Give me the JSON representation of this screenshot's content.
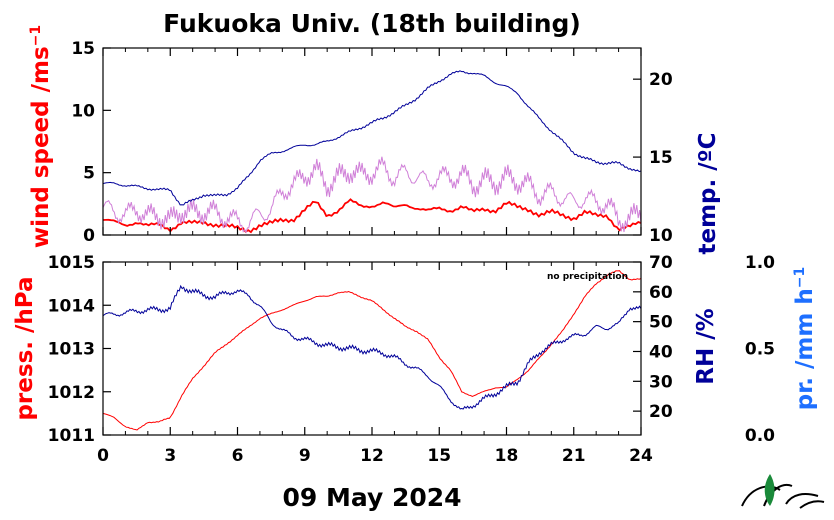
{
  "title": "Fukuoka Univ. (18th building)",
  "date_label": "09 May 2024",
  "note": "no precipitation",
  "colors": {
    "wind": "#ff0000",
    "wind_gust": "#d080d8",
    "temp": "#000099",
    "pressure": "#ff0000",
    "rh": "#000099",
    "precip": "#1e6fff",
    "axis": "#000000"
  },
  "icons": [
    "institution-logo-icon"
  ],
  "chart_data": [
    {
      "type": "line",
      "panel": "top",
      "x_ticks": [
        "0",
        "3",
        "6",
        "9",
        "12",
        "15",
        "18",
        "21",
        "24"
      ],
      "xlim": [
        0,
        24
      ],
      "y_left": {
        "label": "wind speed /ms",
        "exp": "−1",
        "lim": [
          0,
          15
        ],
        "ticks": [
          "0",
          "5",
          "10",
          "15"
        ]
      },
      "y_right": {
        "label": "temp. /ºC",
        "lim": [
          10,
          22
        ],
        "ticks": [
          "10",
          "15",
          "20"
        ]
      },
      "series": [
        {
          "axis": "left",
          "style": "mean",
          "x": [
            0,
            0.5,
            1,
            1.5,
            2,
            2.5,
            3,
            3.5,
            4,
            4.5,
            5,
            5.5,
            6,
            6.5,
            7,
            7.5,
            8,
            8.5,
            9,
            9.5,
            10,
            10.5,
            11,
            11.5,
            12,
            12.5,
            13,
            13.5,
            14,
            14.5,
            15,
            15.5,
            16,
            16.5,
            17,
            17.5,
            18,
            18.5,
            19,
            19.5,
            20,
            20.5,
            21,
            21.5,
            22,
            22.5,
            23,
            23.5,
            24
          ],
          "y": [
            1.2,
            1.0,
            0.8,
            1.1,
            0.7,
            0.8,
            0.5,
            1.0,
            0.9,
            1.0,
            0.9,
            0.7,
            0.5,
            0.4,
            0.8,
            0.9,
            1.2,
            1.3,
            2.0,
            2.6,
            1.6,
            2.0,
            2.7,
            2.3,
            2.4,
            2.6,
            2.1,
            2.5,
            2.2,
            1.9,
            2.1,
            2.0,
            2.3,
            1.8,
            2.1,
            2.0,
            2.5,
            2.2,
            2.1,
            1.6,
            1.8,
            1.6,
            1.4,
            1.8,
            1.5,
            1.6,
            0.5,
            0.6,
            1.0
          ]
        },
        {
          "axis": "left",
          "style": "gust",
          "x": [
            0,
            0.5,
            1,
            1.5,
            2,
            2.5,
            3,
            3.5,
            4,
            4.5,
            5,
            5.5,
            6,
            6.5,
            7,
            7.5,
            8,
            8.5,
            9,
            9.5,
            10,
            10.5,
            11,
            11.5,
            12,
            12.5,
            13,
            13.5,
            14,
            14.5,
            15,
            15.5,
            16,
            16.5,
            17,
            17.5,
            18,
            18.5,
            19,
            19.5,
            20,
            20.5,
            21,
            21.5,
            22,
            22.5,
            23,
            23.5,
            24
          ],
          "y": [
            2.2,
            1.9,
            1.6,
            2.1,
            1.5,
            1.6,
            1.1,
            2.0,
            1.8,
            1.9,
            1.8,
            1.4,
            1.1,
            0.9,
            1.7,
            2.0,
            3.5,
            4.0,
            4.8,
            5.2,
            4.0,
            4.6,
            5.2,
            4.8,
            5.0,
            5.4,
            4.6,
            5.0,
            4.7,
            4.2,
            4.8,
            4.5,
            4.9,
            4.0,
            4.4,
            4.2,
            4.6,
            4.3,
            4.0,
            3.2,
            3.4,
            3.0,
            2.6,
            3.0,
            2.6,
            2.5,
            1.2,
            1.3,
            1.8
          ]
        },
        {
          "axis": "right",
          "style": "temp",
          "x": [
            0,
            0.5,
            1,
            1.5,
            2,
            2.5,
            3,
            3.5,
            4,
            4.5,
            5,
            5.5,
            6,
            6.5,
            7,
            7.5,
            8,
            8.5,
            9,
            9.5,
            10,
            10.5,
            11,
            11.5,
            12,
            12.5,
            13,
            13.5,
            14,
            14.5,
            15,
            15.5,
            16,
            16.5,
            17,
            17.5,
            18,
            18.5,
            19,
            19.5,
            20,
            20.5,
            21,
            21.5,
            22,
            22.5,
            23,
            23.5,
            24
          ],
          "y": [
            13.3,
            13.3,
            13.2,
            13.1,
            13.0,
            12.9,
            12.9,
            11.9,
            12.2,
            12.6,
            12.5,
            12.6,
            13.0,
            13.8,
            14.8,
            15.2,
            15.4,
            15.6,
            15.8,
            15.8,
            16.0,
            16.3,
            16.6,
            16.9,
            17.2,
            17.5,
            17.9,
            18.3,
            18.8,
            19.4,
            19.9,
            20.3,
            20.5,
            20.4,
            20.2,
            19.8,
            19.5,
            19.1,
            18.2,
            17.4,
            16.7,
            16.0,
            15.3,
            14.9,
            14.7,
            14.6,
            14.6,
            14.3,
            14.0
          ]
        }
      ]
    },
    {
      "type": "line",
      "panel": "bottom",
      "x_ticks": [
        "0",
        "3",
        "6",
        "9",
        "12",
        "15",
        "18",
        "21",
        "24"
      ],
      "xlim": [
        0,
        24
      ],
      "y_left": {
        "label": "press. /hPa",
        "lim": [
          1011,
          1015
        ],
        "ticks": [
          "1011",
          "1012",
          "1013",
          "1014",
          "1015"
        ]
      },
      "y_right": {
        "label": "RH /%",
        "lim": [
          12,
          70
        ],
        "ticks": [
          "20",
          "30",
          "40",
          "50",
          "60",
          "70"
        ]
      },
      "y_far_right": {
        "label": "pr. /mm h",
        "exp": "−1",
        "lim": [
          0,
          1
        ],
        "ticks": [
          "0.0",
          "0.5",
          "1.0"
        ]
      },
      "series": [
        {
          "axis": "left",
          "name": "pressure",
          "x": [
            0,
            0.5,
            1,
            1.5,
            2,
            2.5,
            3,
            3.5,
            4,
            4.5,
            5,
            5.5,
            6,
            6.5,
            7,
            7.5,
            8,
            8.5,
            9,
            9.5,
            10,
            10.5,
            11,
            11.5,
            12,
            12.5,
            13,
            13.5,
            14,
            14.5,
            15,
            15.5,
            16,
            16.5,
            17,
            17.5,
            18,
            18.5,
            19,
            19.5,
            20,
            20.5,
            21,
            21.5,
            22,
            22.5,
            23,
            23.5,
            24
          ],
          "y": [
            1011.5,
            1011.4,
            1011.2,
            1011.1,
            1011.3,
            1011.3,
            1011.4,
            1011.9,
            1012.3,
            1012.6,
            1012.9,
            1013.1,
            1013.3,
            1013.5,
            1013.7,
            1013.8,
            1013.9,
            1014.0,
            1014.1,
            1014.2,
            1014.2,
            1014.3,
            1014.3,
            1014.2,
            1014.1,
            1013.9,
            1013.7,
            1013.5,
            1013.4,
            1013.2,
            1012.8,
            1012.5,
            1012.0,
            1011.9,
            1012.0,
            1012.1,
            1012.1,
            1012.3,
            1012.5,
            1012.8,
            1013.1,
            1013.4,
            1013.8,
            1014.2,
            1014.5,
            1014.7,
            1014.8,
            1014.6,
            1014.6
          ]
        },
        {
          "axis": "right",
          "name": "RH",
          "x": [
            0,
            0.5,
            1,
            1.5,
            2,
            2.5,
            3,
            3.5,
            4,
            4.5,
            5,
            5.5,
            6,
            6.5,
            7,
            7.5,
            8,
            8.5,
            9,
            9.5,
            10,
            10.5,
            11,
            11.5,
            12,
            12.5,
            13,
            13.5,
            14,
            14.5,
            15,
            15.5,
            16,
            16.5,
            17,
            17.5,
            18,
            18.5,
            19,
            19.5,
            20,
            20.5,
            21,
            21.5,
            22,
            22.5,
            23,
            23.5,
            24
          ],
          "y": [
            52,
            52.5,
            53,
            53.5,
            54,
            54,
            54.5,
            62,
            60,
            59,
            58,
            60,
            60,
            59,
            55,
            50,
            47,
            45,
            44,
            43,
            42,
            41.5,
            41,
            40.5,
            40,
            39.5,
            38,
            36,
            34,
            32,
            28,
            24,
            20,
            22,
            24,
            26,
            28,
            30,
            36,
            40,
            42,
            44,
            45,
            46,
            48,
            48,
            49,
            55,
            54
          ]
        }
      ]
    }
  ]
}
